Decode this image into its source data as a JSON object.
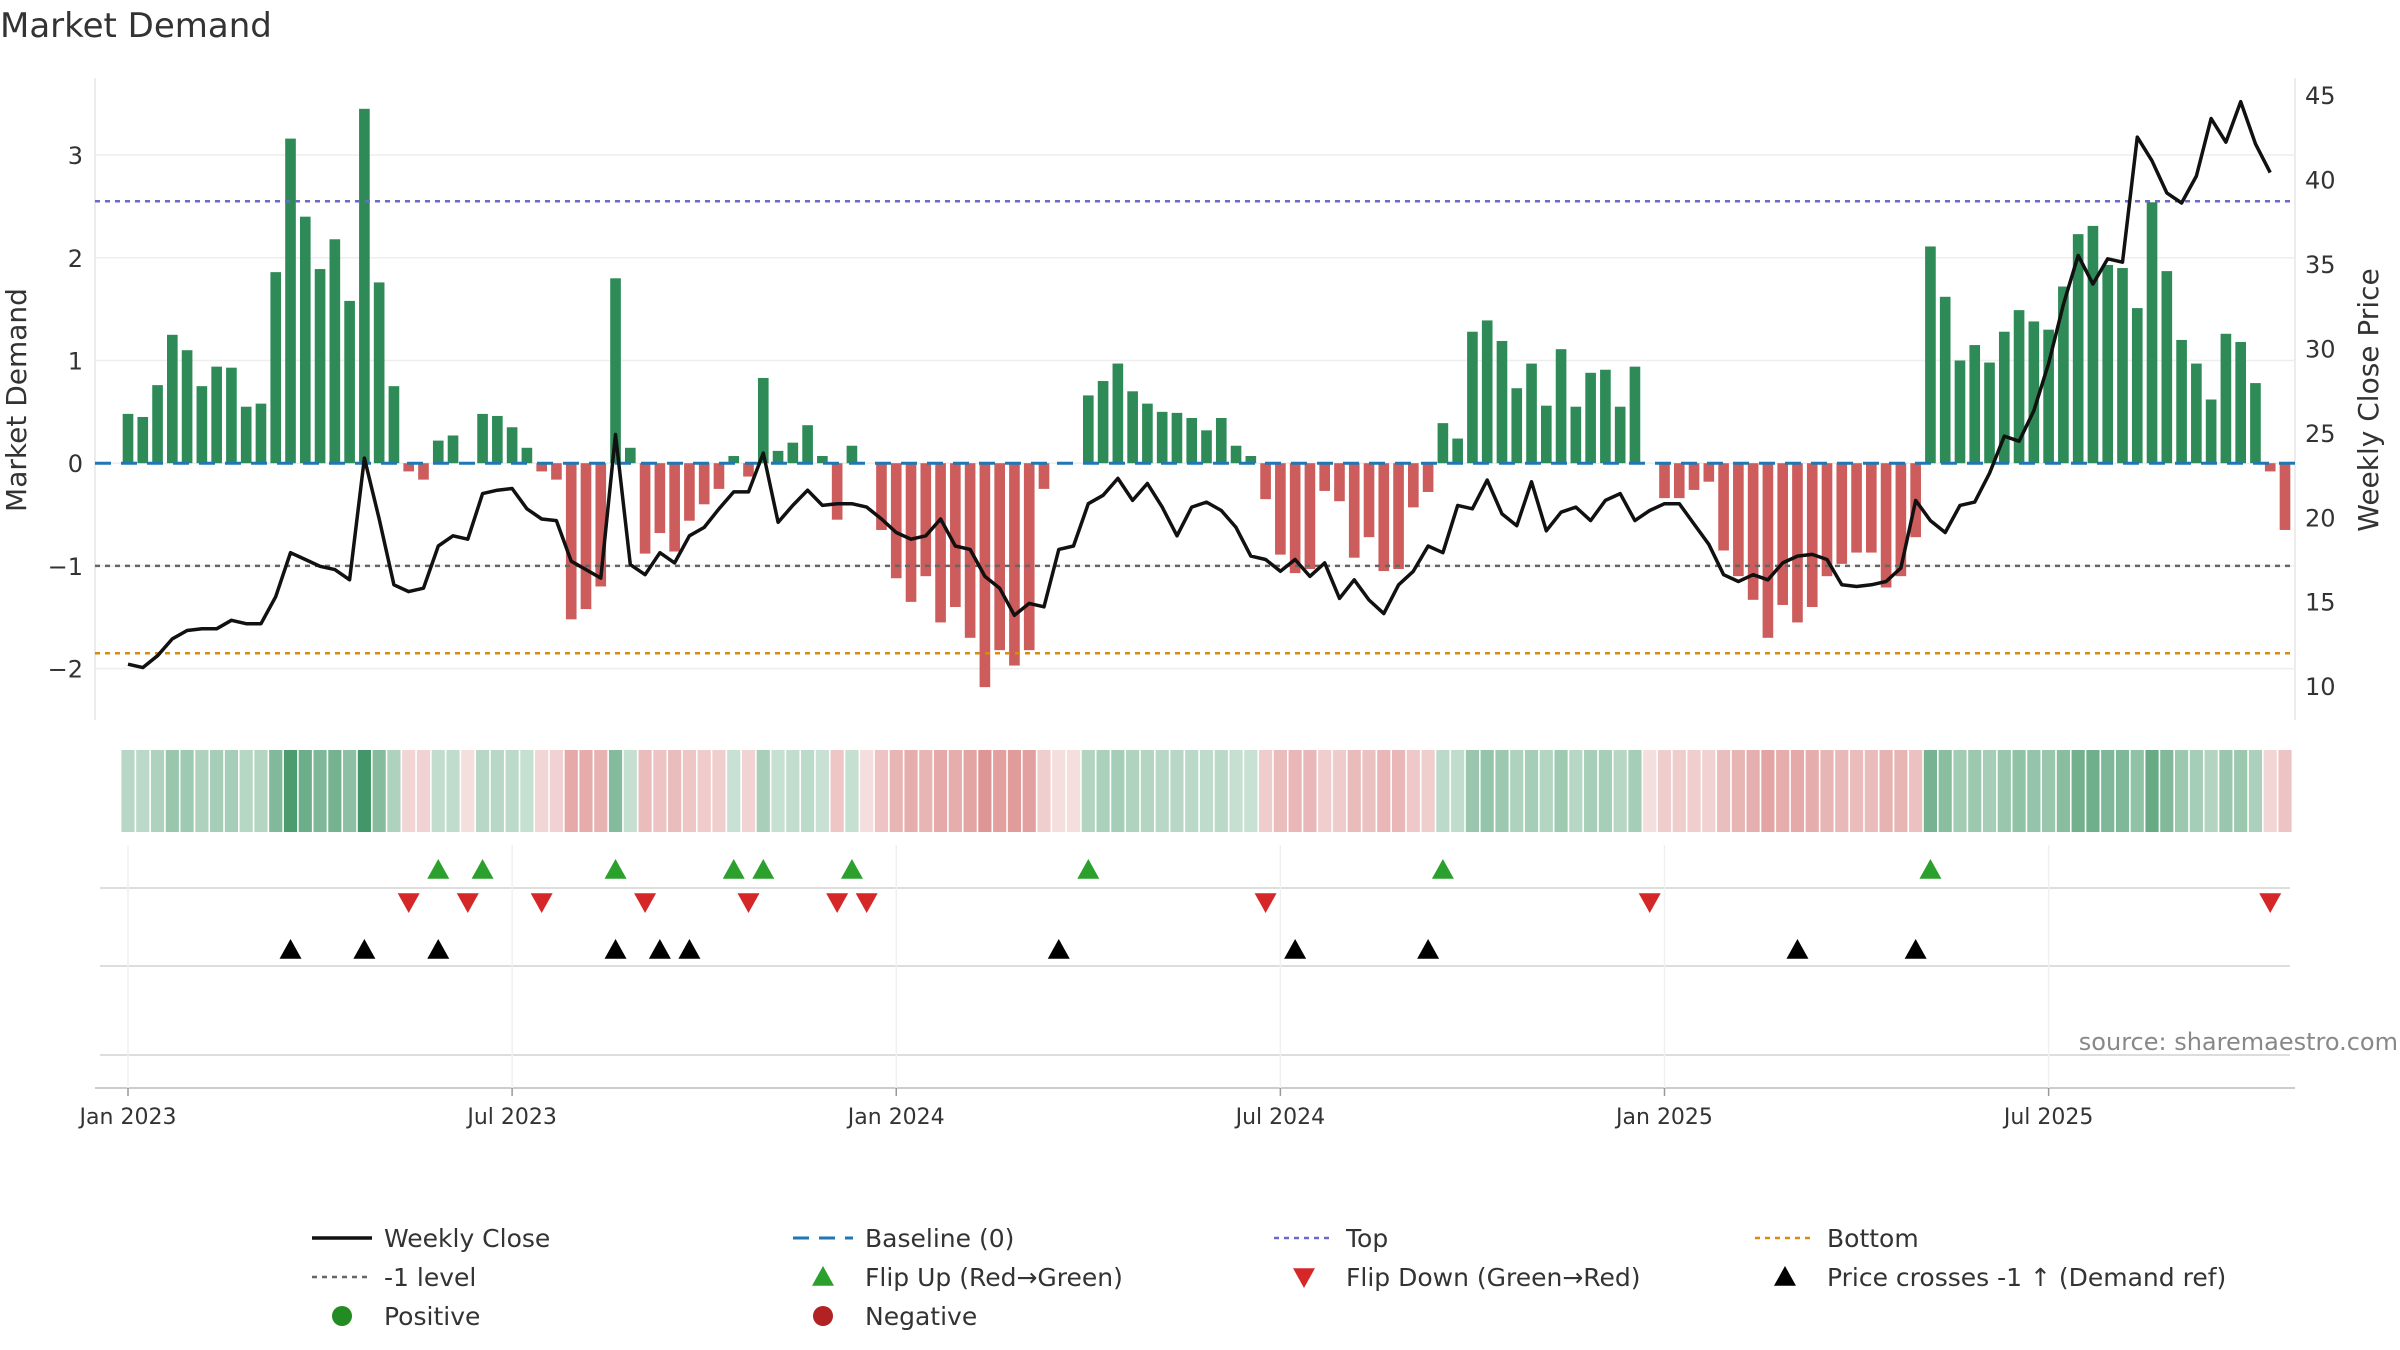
{
  "chart_data": {
    "type": "bar",
    "title": "Market Demand",
    "ylabel_left": "Market Demand",
    "ylabel_right": "Weekly Close Price",
    "ylim_left": [
      -2.5,
      3.75
    ],
    "ylim_right": [
      8.0,
      46.0
    ],
    "yticks_left": [
      "3",
      "2",
      "1",
      "0",
      "−1",
      "−2"
    ],
    "yticks_right": [
      "45",
      "40",
      "35",
      "30",
      "25",
      "20",
      "15",
      "10"
    ],
    "x_tick_labels": [
      "Jan 2023",
      "Jul 2023",
      "Jan 2024",
      "Jul 2024",
      "Jan 2025",
      "Jul 2025"
    ],
    "x_tick_weeks": [
      0,
      26,
      52,
      78,
      104,
      130
    ],
    "week_start": "2023-01-02",
    "reference_lines": {
      "baseline": 0,
      "top": 2.55,
      "minus_one": -1,
      "bottom": -1.85
    },
    "series": [
      {
        "name": "Market Demand",
        "type": "bar",
        "values": [
          0.48,
          0.45,
          0.76,
          1.25,
          1.1,
          0.75,
          0.94,
          0.93,
          0.55,
          0.58,
          1.86,
          3.16,
          2.4,
          1.89,
          2.18,
          1.58,
          3.45,
          1.76,
          0.75,
          -0.08,
          -0.16,
          0.22,
          0.27,
          0,
          0.48,
          0.46,
          0.35,
          0.15,
          -0.08,
          -0.16,
          -1.52,
          -1.42,
          -1.2,
          1.8,
          0.15,
          -0.88,
          -0.68,
          -0.86,
          -0.56,
          -0.4,
          -0.25,
          0.07,
          -0.13,
          0.83,
          0.12,
          0.2,
          0.37,
          0.07,
          -0.55,
          0.17,
          0,
          -0.65,
          -1.12,
          -1.35,
          -1.1,
          -1.55,
          -1.4,
          -1.7,
          -2.18,
          -1.82,
          -1.97,
          -1.82,
          -0.25,
          0,
          0,
          0.66,
          0.8,
          0.97,
          0.7,
          0.58,
          0.5,
          0.49,
          0.44,
          0.32,
          0.44,
          0.17,
          0.07,
          -0.35,
          -0.89,
          -1.07,
          -1.03,
          -0.27,
          -0.37,
          -0.92,
          -0.72,
          -1.05,
          -1.03,
          -0.43,
          -0.28,
          0.39,
          0.24,
          1.28,
          1.39,
          1.19,
          0.73,
          0.97,
          0.56,
          1.11,
          0.55,
          0.88,
          0.91,
          0.55,
          0.94,
          0,
          -0.34,
          -0.34,
          -0.26,
          -0.18,
          -0.85,
          -1.1,
          -1.33,
          -1.7,
          -1.38,
          -1.55,
          -1.4,
          -1.1,
          -0.98,
          -0.87,
          -0.87,
          -1.21,
          -1.1,
          -0.72,
          2.11,
          1.62,
          1.0,
          1.15,
          0.98,
          1.28,
          1.49,
          1.38,
          1.3,
          1.72,
          2.23,
          2.31,
          1.93,
          1.9,
          1.51,
          2.54,
          1.87,
          1.2,
          0.97,
          0.62,
          1.26,
          1.18,
          0.78,
          -0.08,
          -0.65
        ]
      },
      {
        "name": "Weekly Close",
        "type": "line",
        "values": [
          11.3,
          11.1,
          11.8,
          12.8,
          13.3,
          13.4,
          13.4,
          13.9,
          13.7,
          13.7,
          15.3,
          17.9,
          17.5,
          17.1,
          16.9,
          16.3,
          23.5,
          19.9,
          16.0,
          15.6,
          15.8,
          18.3,
          18.9,
          18.7,
          21.4,
          21.6,
          21.7,
          20.5,
          19.9,
          19.8,
          17.4,
          16.9,
          16.4,
          24.9,
          17.2,
          16.6,
          17.9,
          17.3,
          18.9,
          19.4,
          20.5,
          21.5,
          21.5,
          23.8,
          19.7,
          20.7,
          21.6,
          20.7,
          20.8,
          20.8,
          20.6,
          19.9,
          19.1,
          18.7,
          18.9,
          19.9,
          18.3,
          18.1,
          16.5,
          15.8,
          14.2,
          14.9,
          14.7,
          18.1,
          18.3,
          20.8,
          21.3,
          22.3,
          21.0,
          22.0,
          20.6,
          18.9,
          20.6,
          20.9,
          20.4,
          19.4,
          17.7,
          17.5,
          16.8,
          17.5,
          16.5,
          17.3,
          15.2,
          16.3,
          15.1,
          14.3,
          16.0,
          16.8,
          18.3,
          17.9,
          20.7,
          20.5,
          22.2,
          20.2,
          19.5,
          22.1,
          19.2,
          20.3,
          20.6,
          19.8,
          21.0,
          21.4,
          19.8,
          20.4,
          20.8,
          20.8,
          19.6,
          18.4,
          16.6,
          16.2,
          16.6,
          16.3,
          17.3,
          17.7,
          17.8,
          17.5,
          16.0,
          15.9,
          16.0,
          16.2,
          17.0,
          21.0,
          19.8,
          19.1,
          20.7,
          20.9,
          22.6,
          24.8,
          24.5,
          26.3,
          29.1,
          32.6,
          35.5,
          33.8,
          35.3,
          35.1,
          42.5,
          41.1,
          39.2,
          38.6,
          40.2,
          43.6,
          42.2,
          44.6,
          42.1,
          40.4
        ]
      }
    ],
    "source": "source: sharemaestro.com"
  },
  "legend": [
    {
      "key": "weekly_close",
      "label": "Weekly Close"
    },
    {
      "key": "baseline",
      "label": "Baseline (0)"
    },
    {
      "key": "top",
      "label": "Top"
    },
    {
      "key": "bottom",
      "label": "Bottom"
    },
    {
      "key": "minus_one",
      "label": "-1 level"
    },
    {
      "key": "flip_up",
      "label": "Flip Up (Red→Green)"
    },
    {
      "key": "flip_down",
      "label": "Flip Down (Green→Red)"
    },
    {
      "key": "price_cross",
      "label": "Price crosses -1 ↑ (Demand ref)"
    },
    {
      "key": "positive",
      "label": "Positive"
    },
    {
      "key": "negative",
      "label": "Negative"
    }
  ],
  "colors": {
    "positive_bar": "#2e8b57",
    "negative_bar": "#cd5c5c",
    "price_line": "#111111",
    "baseline": "#1f77b4",
    "top": "#6a6acd",
    "minus_one": "#666666",
    "bottom": "#d98c0a",
    "flip_up": "#2ca02c",
    "flip_down": "#d62728",
    "price_cross": "#000000",
    "positive_dot": "#228b22",
    "negative_dot": "#b22222"
  }
}
